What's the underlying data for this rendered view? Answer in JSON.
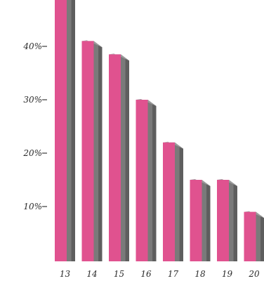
{
  "chart_data": {
    "type": "bar",
    "title": "",
    "xlabel": "",
    "ylabel": "",
    "categories": [
      "13",
      "14",
      "15",
      "16",
      "17",
      "18",
      "19",
      "20"
    ],
    "values": [
      51,
      41,
      38.5,
      30,
      22,
      15,
      15,
      9
    ],
    "y_ticks": [
      {
        "value": 10,
        "label": "10%"
      },
      {
        "value": 20,
        "label": "20%"
      },
      {
        "value": 30,
        "label": "30%"
      },
      {
        "value": 40,
        "label": "40%"
      }
    ],
    "ylim": [
      0,
      52
    ],
    "grid": false,
    "colors": {
      "bar_face": "#e0528f",
      "bar_side": "#7a7a7a",
      "bar_side_dark": "#5e5e5e",
      "bar_top": "#9b9b9b",
      "text": "#2b2b2b",
      "tick_mark": "#3a3a3a"
    }
  }
}
